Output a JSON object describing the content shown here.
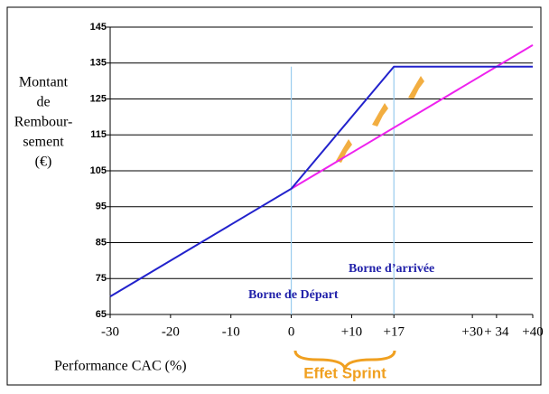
{
  "chart_data": {
    "type": "line",
    "y_label": [
      "Montant",
      "de",
      "Rembour-",
      "sement",
      "(€)"
    ],
    "x_label": "Performance CAC (%)",
    "series": [
      {
        "color": "#2222cc",
        "x": [
          -30,
          0,
          17,
          40
        ],
        "values": [
          70,
          100,
          134,
          134
        ]
      },
      {
        "color": "#ee22ee",
        "x": [
          0,
          40
        ],
        "values": [
          100,
          140
        ]
      }
    ],
    "vlines": [
      0,
      17
    ],
    "xlim": [
      -30,
      40
    ],
    "ylim": [
      65,
      145
    ],
    "xticks": [
      -30,
      -20,
      -10,
      0,
      {
        "value": 10,
        "label": "+10"
      },
      {
        "value": 17,
        "label": "+17"
      },
      {
        "value": 30,
        "label": "+30"
      },
      {
        "value": 34,
        "label": "+ 34"
      },
      {
        "value": 40,
        "label": "+40"
      }
    ],
    "yticks": [
      65,
      75,
      85,
      95,
      105,
      115,
      125,
      135,
      145
    ],
    "grid": true,
    "annotations": [
      "Borne de Départ",
      "Borne d’arrivée",
      "Effet Sprint"
    ]
  }
}
